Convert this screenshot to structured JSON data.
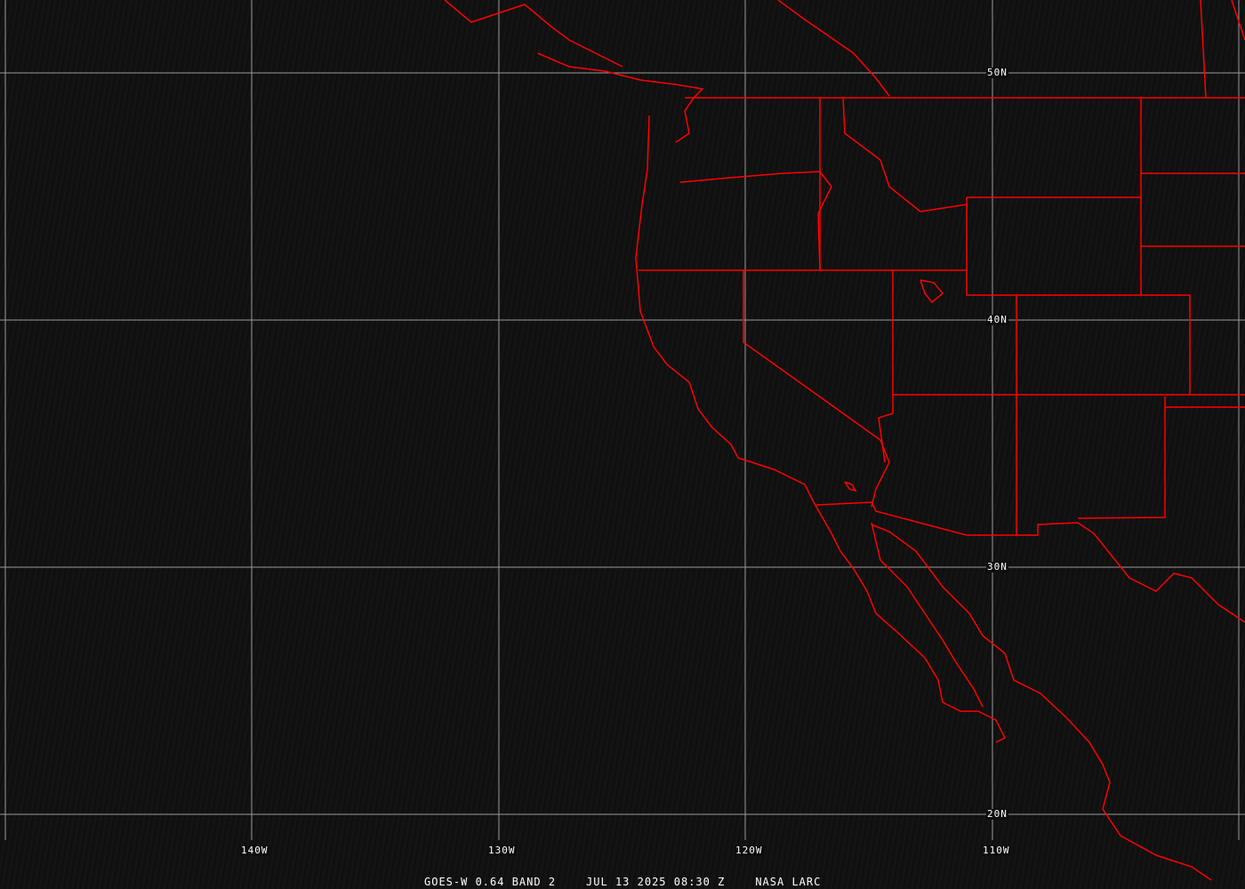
{
  "colors": {
    "boundaries": "#ff0000",
    "grid": "#9a9a9a",
    "background": "#0d0d0d",
    "text": "#ffffff"
  },
  "grid": {
    "longitude_labels": [
      "140W",
      "130W",
      "120W",
      "110W"
    ],
    "latitude_labels": [
      "50N",
      "40N",
      "30N",
      "20N"
    ]
  },
  "caption": {
    "satellite": "GOES-W 0.64 BAND 2",
    "datetime": "JUL 13 2025 08:30 Z",
    "credit": "NASA LARC"
  }
}
